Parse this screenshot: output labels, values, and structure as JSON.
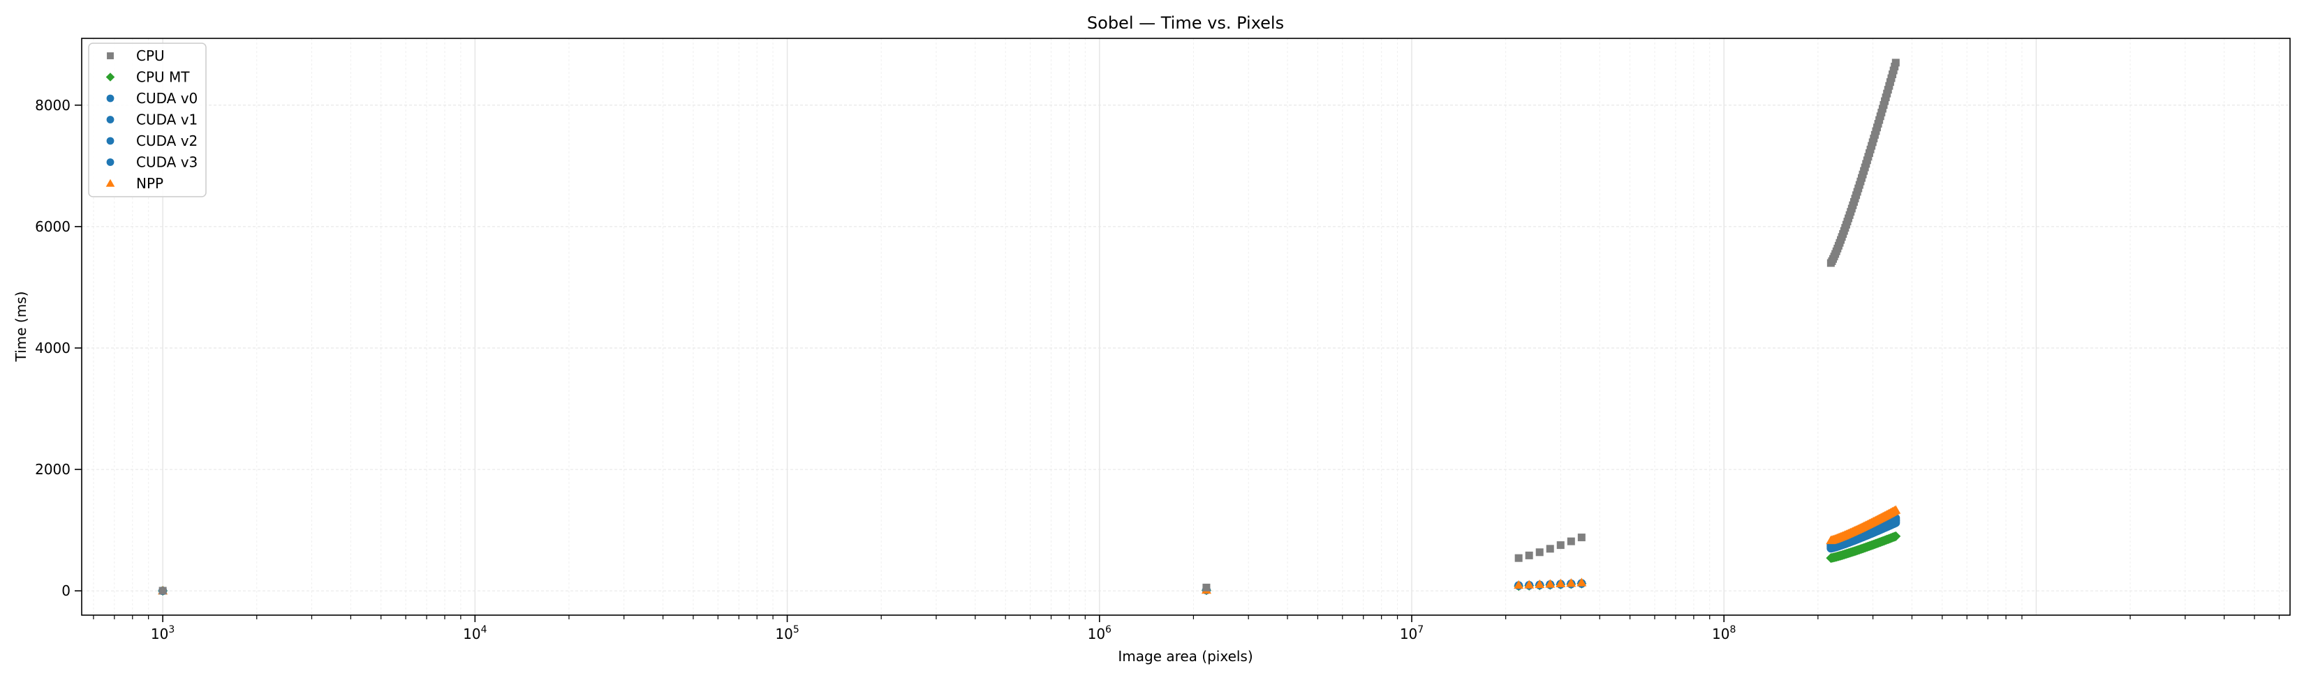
{
  "chart_data": {
    "type": "scatter",
    "title": "Sobel — Time vs. Pixels",
    "xlabel": "Image area (pixels)",
    "ylabel": "Time (ms)",
    "xscale": "log",
    "xlim": [
      550,
      6500000000
    ],
    "ylim": [
      -400,
      9100
    ],
    "xticks": [
      1000,
      10000,
      100000,
      1000000,
      10000000,
      100000000
    ],
    "xtick_labels": [
      {
        "base": "10",
        "exp": "3"
      },
      {
        "base": "10",
        "exp": "4"
      },
      {
        "base": "10",
        "exp": "5"
      },
      {
        "base": "10",
        "exp": "6"
      },
      {
        "base": "10",
        "exp": "7"
      },
      {
        "base": "10",
        "exp": "8"
      }
    ],
    "yticks": [
      0,
      2000,
      4000,
      6000,
      8000
    ],
    "ytick_labels": [
      "0",
      "2000",
      "4000",
      "6000",
      "8000"
    ],
    "grid": true,
    "legend_position": "top-left",
    "series": [
      {
        "name": "CPU",
        "marker": "square",
        "color": "#7f7f7f",
        "groups": [
          {
            "x0": 1000,
            "x1": 1000,
            "y0": 2,
            "y1": 2,
            "n": 1
          },
          {
            "x0": 2200000,
            "x1": 2200000,
            "y0": 55,
            "y1": 55,
            "n": 1
          },
          {
            "x0": 22000000,
            "x1": 35000000,
            "y0": 540,
            "y1": 880,
            "n": 7
          },
          {
            "x0": 220000000,
            "x1": 355000000,
            "y0": 5400,
            "y1": 8700,
            "n": 60
          }
        ]
      },
      {
        "name": "CPU MT",
        "marker": "diamond",
        "color": "#2ca02c",
        "groups": [
          {
            "x0": 1000,
            "x1": 1000,
            "y0": 1,
            "y1": 1,
            "n": 1
          },
          {
            "x0": 2200000,
            "x1": 2200000,
            "y0": 10,
            "y1": 10,
            "n": 1
          },
          {
            "x0": 22000000,
            "x1": 35000000,
            "y0": 80,
            "y1": 120,
            "n": 7
          },
          {
            "x0": 220000000,
            "x1": 355000000,
            "y0": 540,
            "y1": 900,
            "n": 60
          }
        ]
      },
      {
        "name": "CUDA v0",
        "marker": "circle",
        "color": "#1f77b4",
        "groups": [
          {
            "x0": 1000,
            "x1": 1000,
            "y0": 1,
            "y1": 1,
            "n": 1
          },
          {
            "x0": 2200000,
            "x1": 2200000,
            "y0": 12,
            "y1": 12,
            "n": 1
          },
          {
            "x0": 22000000,
            "x1": 35000000,
            "y0": 90,
            "y1": 125,
            "n": 7
          },
          {
            "x0": 220000000,
            "x1": 355000000,
            "y0": 760,
            "y1": 1200,
            "n": 60
          }
        ]
      },
      {
        "name": "CUDA v1",
        "marker": "circle",
        "color": "#1f77b4",
        "groups": [
          {
            "x0": 1000,
            "x1": 1000,
            "y0": 1,
            "y1": 1,
            "n": 1
          },
          {
            "x0": 2200000,
            "x1": 2200000,
            "y0": 12,
            "y1": 12,
            "n": 1
          },
          {
            "x0": 22000000,
            "x1": 35000000,
            "y0": 88,
            "y1": 122,
            "n": 7
          },
          {
            "x0": 220000000,
            "x1": 355000000,
            "y0": 740,
            "y1": 1170,
            "n": 60
          }
        ]
      },
      {
        "name": "CUDA v2",
        "marker": "circle",
        "color": "#1f77b4",
        "groups": [
          {
            "x0": 1000,
            "x1": 1000,
            "y0": 1,
            "y1": 1,
            "n": 1
          },
          {
            "x0": 2200000,
            "x1": 2200000,
            "y0": 12,
            "y1": 12,
            "n": 1
          },
          {
            "x0": 22000000,
            "x1": 35000000,
            "y0": 86,
            "y1": 120,
            "n": 7
          },
          {
            "x0": 220000000,
            "x1": 355000000,
            "y0": 720,
            "y1": 1150,
            "n": 60
          }
        ]
      },
      {
        "name": "CUDA v3",
        "marker": "circle",
        "color": "#1f77b4",
        "groups": [
          {
            "x0": 1000,
            "x1": 1000,
            "y0": 1,
            "y1": 1,
            "n": 1
          },
          {
            "x0": 2200000,
            "x1": 2200000,
            "y0": 11,
            "y1": 11,
            "n": 1
          },
          {
            "x0": 22000000,
            "x1": 35000000,
            "y0": 84,
            "y1": 118,
            "n": 7
          },
          {
            "x0": 220000000,
            "x1": 355000000,
            "y0": 700,
            "y1": 1120,
            "n": 60
          }
        ]
      },
      {
        "name": "NPP",
        "marker": "triangle",
        "color": "#ff7f0e",
        "groups": [
          {
            "x0": 1000,
            "x1": 1000,
            "y0": 1,
            "y1": 1,
            "n": 1
          },
          {
            "x0": 2200000,
            "x1": 2200000,
            "y0": 13,
            "y1": 13,
            "n": 1
          },
          {
            "x0": 22000000,
            "x1": 35000000,
            "y0": 95,
            "y1": 135,
            "n": 7
          },
          {
            "x0": 220000000,
            "x1": 355000000,
            "y0": 830,
            "y1": 1330,
            "n": 60
          }
        ]
      }
    ]
  }
}
